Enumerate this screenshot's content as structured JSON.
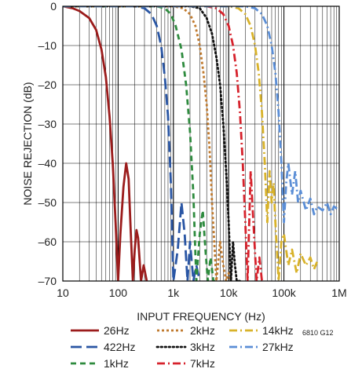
{
  "chart_data": {
    "type": "line",
    "xlabel": "INPUT FREQUENCY (Hz)",
    "ylabel": "NOISE REJECTION (dB)",
    "x_scale": "log",
    "xlim": [
      10,
      1000000
    ],
    "ylim": [
      -70,
      0
    ],
    "grid": true,
    "x_ticks": [
      10,
      100,
      1000,
      10000,
      100000,
      1000000
    ],
    "x_tick_labels": [
      "10",
      "100",
      "1k",
      "10k",
      "100k",
      "1M"
    ],
    "y_ticks": [
      0,
      -10,
      -20,
      -30,
      -40,
      -50,
      -60,
      -70
    ],
    "y_tick_labels": [
      "0",
      "–10",
      "–20",
      "–30",
      "–40",
      "–50",
      "–60",
      "–70"
    ],
    "figure_code": "6810 G12",
    "legend_position": "bottom",
    "series": [
      {
        "name": "26Hz",
        "color": "#9b1c1c",
        "dash": "solid",
        "x": [
          10,
          15,
          20,
          30,
          40,
          50,
          60,
          70,
          80,
          90,
          100,
          110,
          125,
          140,
          155,
          170,
          185,
          200,
          215,
          230,
          260,
          290,
          330
        ],
        "y": [
          0,
          -0.5,
          -1.2,
          -3,
          -6,
          -11,
          -18,
          -28,
          -40,
          -55,
          -70,
          -58,
          -46,
          -40,
          -44,
          -58,
          -70,
          -62,
          -57,
          -59,
          -70,
          -66,
          -70
        ]
      },
      {
        "name": "422Hz",
        "color": "#2a56a4",
        "dash": "long-dash",
        "x": [
          10,
          200,
          300,
          400,
          500,
          600,
          700,
          800,
          900,
          1000,
          1200,
          1400,
          1600,
          1800,
          2000,
          2300,
          2600,
          3000
        ],
        "y": [
          0,
          0,
          -0.5,
          -2,
          -5,
          -10,
          -18,
          -28,
          -45,
          -70,
          -62,
          -50,
          -58,
          -70,
          -60,
          -70,
          -66,
          -70
        ]
      },
      {
        "name": "1kHz",
        "color": "#2e8b3e",
        "dash": "dash",
        "x": [
          10,
          500,
          700,
          900,
          1100,
          1400,
          1700,
          2000,
          2300,
          2600,
          3000,
          3400,
          3800,
          4200,
          4700,
          5300,
          6000
        ],
        "y": [
          0,
          0,
          -0.5,
          -2,
          -5,
          -11,
          -20,
          -32,
          -48,
          -70,
          -58,
          -52,
          -62,
          -70,
          -64,
          -70,
          -70
        ]
      },
      {
        "name": "2kHz",
        "color": "#c07a2e",
        "dash": "dot-dense",
        "x": [
          10,
          1000,
          1500,
          2000,
          2500,
          3000,
          3500,
          4000,
          4500,
          5000,
          6000,
          7000,
          8000,
          9000,
          10000,
          11000
        ],
        "y": [
          0,
          0,
          -0.5,
          -2,
          -5,
          -10,
          -17,
          -25,
          -36,
          -50,
          -70,
          -60,
          -66,
          -70,
          -68,
          -70
        ]
      },
      {
        "name": "3kHz",
        "color": "#111111",
        "dash": "dot",
        "x": [
          10,
          2000,
          3000,
          4000,
          5000,
          6000,
          7000,
          8000,
          9000,
          10000,
          11000,
          12000,
          13000,
          14000,
          16000
        ],
        "y": [
          0,
          0,
          -0.5,
          -3,
          -7,
          -13,
          -20,
          -30,
          -42,
          -55,
          -70,
          -60,
          -66,
          -70,
          -70
        ]
      },
      {
        "name": "7kHz",
        "color": "#d6222c",
        "dash": "dash-dot",
        "x": [
          10,
          4000,
          6000,
          8000,
          10000,
          12000,
          14000,
          16000,
          18000,
          20000,
          22000,
          25000,
          28000,
          32000,
          36000,
          40000
        ],
        "y": [
          0,
          0,
          -0.5,
          -2,
          -5,
          -10,
          -17,
          -27,
          -40,
          -55,
          -70,
          -42,
          -55,
          -70,
          -64,
          -70
        ]
      },
      {
        "name": "14kHz",
        "color": "#d8b22a",
        "dash": "dash-dot",
        "x": [
          10,
          10000,
          15000,
          20000,
          25000,
          30000,
          35000,
          40000,
          45000,
          50000,
          55000,
          60000,
          65000,
          70000,
          80000,
          90000,
          100000,
          120000,
          140000,
          170000,
          200000,
          250000,
          300000,
          350000,
          400000
        ],
        "y": [
          0,
          0,
          -0.5,
          -2,
          -5,
          -10,
          -17,
          -27,
          -40,
          -55,
          -42,
          -50,
          -45,
          -55,
          -70,
          -60,
          -58,
          -66,
          -62,
          -68,
          -63,
          -66,
          -64,
          -67,
          -65
        ]
      },
      {
        "name": "27kHz",
        "color": "#5b8ed6",
        "dash": "dash-dot",
        "x": [
          10,
          20000,
          30000,
          40000,
          50000,
          60000,
          70000,
          80000,
          90000,
          100000,
          110000,
          120000,
          140000,
          160000,
          180000,
          200000,
          250000,
          300000,
          350000,
          400000,
          500000,
          600000,
          700000,
          800000,
          1000000
        ],
        "y": [
          0,
          0,
          -0.5,
          -2,
          -5,
          -10,
          -17,
          -27,
          -40,
          -55,
          -45,
          -40,
          -48,
          -42,
          -50,
          -47,
          -52,
          -49,
          -53,
          -51,
          -52,
          -50,
          -53,
          -51,
          -52
        ]
      }
    ]
  }
}
